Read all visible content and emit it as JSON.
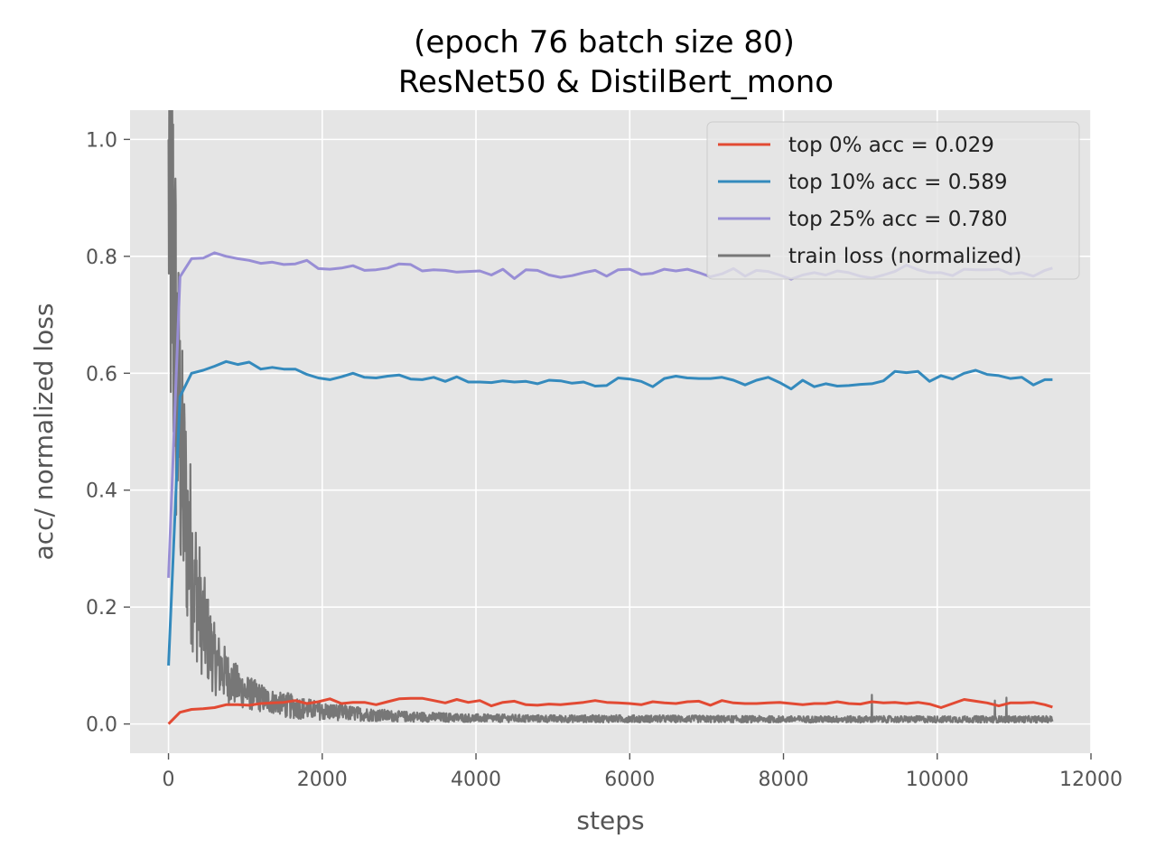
{
  "chart_data": {
    "type": "line",
    "title": "(epoch 76 batch size 80)",
    "subtitle": "ResNet50 & DistilBert_mono",
    "xlabel": "steps",
    "ylabel": "acc/ normalized loss",
    "xlim": [
      -500,
      12000
    ],
    "ylim": [
      -0.05,
      1.05
    ],
    "xticks": [
      0,
      2000,
      4000,
      6000,
      8000,
      10000,
      12000
    ],
    "yticks": [
      0.0,
      0.2,
      0.4,
      0.6,
      0.8,
      1.0
    ],
    "grid": true,
    "style": "ggplot",
    "legend_position": "top-right",
    "series": [
      {
        "name": "top 0% acc = 0.029",
        "color": "#E24A33",
        "x": [
          0,
          150,
          300,
          450,
          600,
          750,
          900,
          1050,
          1200,
          1350,
          1500,
          1650,
          1800,
          1950,
          2100,
          2250,
          2400,
          2550,
          2700,
          2850,
          3000,
          3150,
          3300,
          3450,
          3600,
          3750,
          3900,
          4050,
          4200,
          4350,
          4500,
          4650,
          4800,
          4950,
          5100,
          5250,
          5400,
          5550,
          5700,
          5850,
          6000,
          6150,
          6300,
          6450,
          6600,
          6750,
          6900,
          7050,
          7200,
          7350,
          7500,
          7650,
          7800,
          7950,
          8100,
          8250,
          8400,
          8550,
          8700,
          8850,
          9000,
          9150,
          9300,
          9450,
          9600,
          9750,
          9900,
          10050,
          10200,
          10350,
          10500,
          10650,
          10800,
          10950,
          11100,
          11250,
          11400,
          11500
        ],
        "y": [
          0.0,
          0.02,
          0.025,
          0.026,
          0.028,
          0.033,
          0.033,
          0.032,
          0.035,
          0.036,
          0.037,
          0.04,
          0.035,
          0.038,
          0.043,
          0.035,
          0.037,
          0.037,
          0.033,
          0.038,
          0.043,
          0.044,
          0.044,
          0.04,
          0.036,
          0.042,
          0.037,
          0.04,
          0.031,
          0.037,
          0.039,
          0.033,
          0.032,
          0.034,
          0.033,
          0.035,
          0.037,
          0.04,
          0.037,
          0.036,
          0.035,
          0.033,
          0.038,
          0.036,
          0.035,
          0.038,
          0.039,
          0.032,
          0.04,
          0.036,
          0.035,
          0.035,
          0.036,
          0.037,
          0.035,
          0.033,
          0.035,
          0.035,
          0.038,
          0.035,
          0.034,
          0.038,
          0.036,
          0.037,
          0.035,
          0.037,
          0.034,
          0.028,
          0.035,
          0.042,
          0.039,
          0.036,
          0.031,
          0.036,
          0.036,
          0.037,
          0.033,
          0.029
        ]
      },
      {
        "name": "top 10% acc = 0.589",
        "color": "#348ABD",
        "x": [
          0,
          150,
          300,
          450,
          600,
          750,
          900,
          1050,
          1200,
          1350,
          1500,
          1650,
          1800,
          1950,
          2100,
          2250,
          2400,
          2550,
          2700,
          2850,
          3000,
          3150,
          3300,
          3450,
          3600,
          3750,
          3900,
          4050,
          4200,
          4350,
          4500,
          4650,
          4800,
          4950,
          5100,
          5250,
          5400,
          5550,
          5700,
          5850,
          6000,
          6150,
          6300,
          6450,
          6600,
          6750,
          6900,
          7050,
          7200,
          7350,
          7500,
          7650,
          7800,
          7950,
          8100,
          8250,
          8400,
          8550,
          8700,
          8850,
          9000,
          9150,
          9300,
          9450,
          9600,
          9750,
          9900,
          10050,
          10200,
          10350,
          10500,
          10650,
          10800,
          10950,
          11100,
          11250,
          11400,
          11500
        ],
        "y": [
          0.1,
          0.56,
          0.6,
          0.605,
          0.612,
          0.62,
          0.615,
          0.619,
          0.607,
          0.61,
          0.607,
          0.607,
          0.598,
          0.592,
          0.589,
          0.594,
          0.6,
          0.593,
          0.592,
          0.595,
          0.597,
          0.59,
          0.589,
          0.593,
          0.586,
          0.594,
          0.585,
          0.585,
          0.584,
          0.587,
          0.585,
          0.586,
          0.582,
          0.588,
          0.587,
          0.583,
          0.585,
          0.578,
          0.579,
          0.592,
          0.59,
          0.586,
          0.577,
          0.591,
          0.595,
          0.592,
          0.591,
          0.591,
          0.593,
          0.588,
          0.58,
          0.588,
          0.593,
          0.584,
          0.573,
          0.588,
          0.577,
          0.582,
          0.578,
          0.579,
          0.581,
          0.582,
          0.587,
          0.603,
          0.601,
          0.603,
          0.586,
          0.596,
          0.59,
          0.6,
          0.605,
          0.598,
          0.596,
          0.591,
          0.593,
          0.58,
          0.589,
          0.589
        ]
      },
      {
        "name": "top 25% acc = 0.780",
        "color": "#988ED5",
        "x": [
          0,
          150,
          300,
          450,
          600,
          750,
          900,
          1050,
          1200,
          1350,
          1500,
          1650,
          1800,
          1950,
          2100,
          2250,
          2400,
          2550,
          2700,
          2850,
          3000,
          3150,
          3300,
          3450,
          3600,
          3750,
          3900,
          4050,
          4200,
          4350,
          4500,
          4650,
          4800,
          4950,
          5100,
          5250,
          5400,
          5550,
          5700,
          5850,
          6000,
          6150,
          6300,
          6450,
          6600,
          6750,
          6900,
          7050,
          7200,
          7350,
          7500,
          7650,
          7800,
          7950,
          8100,
          8250,
          8400,
          8550,
          8700,
          8850,
          9000,
          9150,
          9300,
          9450,
          9600,
          9750,
          9900,
          10050,
          10200,
          10350,
          10500,
          10650,
          10800,
          10950,
          11100,
          11250,
          11400,
          11500
        ],
        "y": [
          0.25,
          0.765,
          0.796,
          0.797,
          0.806,
          0.8,
          0.796,
          0.793,
          0.788,
          0.79,
          0.786,
          0.787,
          0.793,
          0.779,
          0.778,
          0.78,
          0.784,
          0.776,
          0.777,
          0.78,
          0.787,
          0.786,
          0.775,
          0.777,
          0.776,
          0.773,
          0.774,
          0.775,
          0.768,
          0.778,
          0.762,
          0.777,
          0.776,
          0.768,
          0.764,
          0.767,
          0.772,
          0.776,
          0.766,
          0.777,
          0.778,
          0.769,
          0.771,
          0.778,
          0.775,
          0.778,
          0.772,
          0.765,
          0.77,
          0.779,
          0.766,
          0.776,
          0.774,
          0.768,
          0.761,
          0.768,
          0.772,
          0.768,
          0.775,
          0.772,
          0.766,
          0.763,
          0.768,
          0.774,
          0.785,
          0.777,
          0.772,
          0.772,
          0.767,
          0.778,
          0.777,
          0.777,
          0.778,
          0.77,
          0.772,
          0.766,
          0.776,
          0.78
        ]
      },
      {
        "name": "train loss (normalized)",
        "color": "#777777",
        "generator": {
          "x_start": 0,
          "x_end": 11500,
          "step": 5,
          "envelope": [
            [
              0,
              1.0
            ],
            [
              40,
              0.85
            ],
            [
              80,
              0.7
            ],
            [
              120,
              0.55
            ],
            [
              180,
              0.42
            ],
            [
              250,
              0.33
            ],
            [
              350,
              0.24
            ],
            [
              450,
              0.17
            ],
            [
              600,
              0.11
            ],
            [
              800,
              0.075
            ],
            [
              1000,
              0.055
            ],
            [
              1300,
              0.04
            ],
            [
              1600,
              0.03
            ],
            [
              2000,
              0.022
            ],
            [
              2500,
              0.017
            ],
            [
              3000,
              0.013
            ],
            [
              4000,
              0.01
            ],
            [
              5000,
              0.009
            ],
            [
              6000,
              0.009
            ],
            [
              8000,
              0.008
            ],
            [
              10000,
              0.008
            ],
            [
              11500,
              0.008
            ]
          ],
          "spikes": [
            [
              230,
              0.43
            ],
            [
              260,
              0.38
            ],
            [
              340,
              0.28
            ],
            [
              420,
              0.25
            ],
            [
              9150,
              0.05
            ],
            [
              10750,
              0.04
            ],
            [
              10900,
              0.045
            ]
          ]
        }
      }
    ]
  }
}
